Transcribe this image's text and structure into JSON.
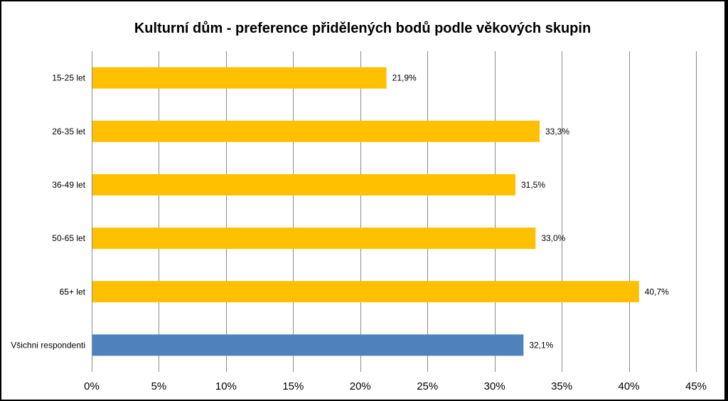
{
  "chart_data": {
    "type": "bar",
    "orientation": "horizontal",
    "title": "Kulturní dům - preference přidělených bodů podle věkových skupin",
    "categories": [
      "15-25 let",
      "26-35 let",
      "36-49 let",
      "50-65 let",
      "65+ let",
      "Všichni respondenti"
    ],
    "values": [
      21.9,
      33.3,
      31.5,
      33.0,
      40.7,
      32.1
    ],
    "value_labels": [
      "21,9%",
      "33,3%",
      "31,5%",
      "33,0%",
      "40,7%",
      "32,1%"
    ],
    "bar_colors": [
      "#ffc000",
      "#ffc000",
      "#ffc000",
      "#ffc000",
      "#ffc000",
      "#4f81bd"
    ],
    "xlim": [
      0,
      45
    ],
    "x_ticks": [
      0,
      5,
      10,
      15,
      20,
      25,
      30,
      35,
      40,
      45
    ],
    "x_tick_labels": [
      "0%",
      "5%",
      "10%",
      "15%",
      "20%",
      "25%",
      "30%",
      "35%",
      "40%",
      "45%"
    ],
    "xlabel": "",
    "ylabel": "",
    "grid": true,
    "legend": false
  },
  "colors": {
    "highlight": "#ffc000",
    "total": "#4f81bd",
    "grid": "#8c8c8c",
    "border": "#000000"
  }
}
